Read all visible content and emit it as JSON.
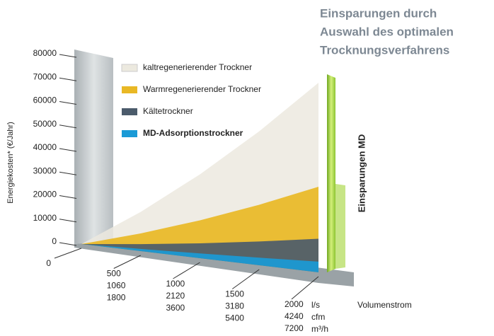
{
  "chart_data": {
    "type": "area",
    "title": [
      "Einsparungen durch",
      "Auswahl des optimalen",
      "Trocknungsverfahrens"
    ],
    "y_label": "Energiekosten* (€/Jahr)",
    "x_label": "Volumenstrom",
    "side_label": "Einsparungen MD",
    "x": [
      0,
      500,
      1000,
      1500,
      2000
    ],
    "x_units": [
      "l/s",
      "cfm",
      "m³/h"
    ],
    "x_cfm": [
      null,
      1060,
      2120,
      3180,
      4240
    ],
    "x_m3h": [
      null,
      1800,
      3600,
      5400,
      7200
    ],
    "xlim": [
      0,
      2000
    ],
    "ylim": [
      0,
      80000
    ],
    "yticks": [
      0,
      10000,
      20000,
      30000,
      40000,
      50000,
      60000,
      70000,
      80000
    ],
    "series": [
      {
        "name": "kaltregenerierender Trockner",
        "color": "#ece9df",
        "values": [
          0,
          15500,
          31000,
          46500,
          62000
        ]
      },
      {
        "name": "Warmregenerierender Trockner",
        "color": "#e9b825",
        "values": [
          0,
          7000,
          14000,
          21000,
          28000
        ]
      },
      {
        "name": "Kältetrockner",
        "color": "#4b5b6b",
        "values": [
          0,
          2750,
          5500,
          8250,
          11000
        ]
      },
      {
        "name": "MD-Adsorptionstrockner",
        "color": "#1a9ad6",
        "values": [
          0,
          875,
          1750,
          2625,
          3500
        ]
      }
    ]
  }
}
